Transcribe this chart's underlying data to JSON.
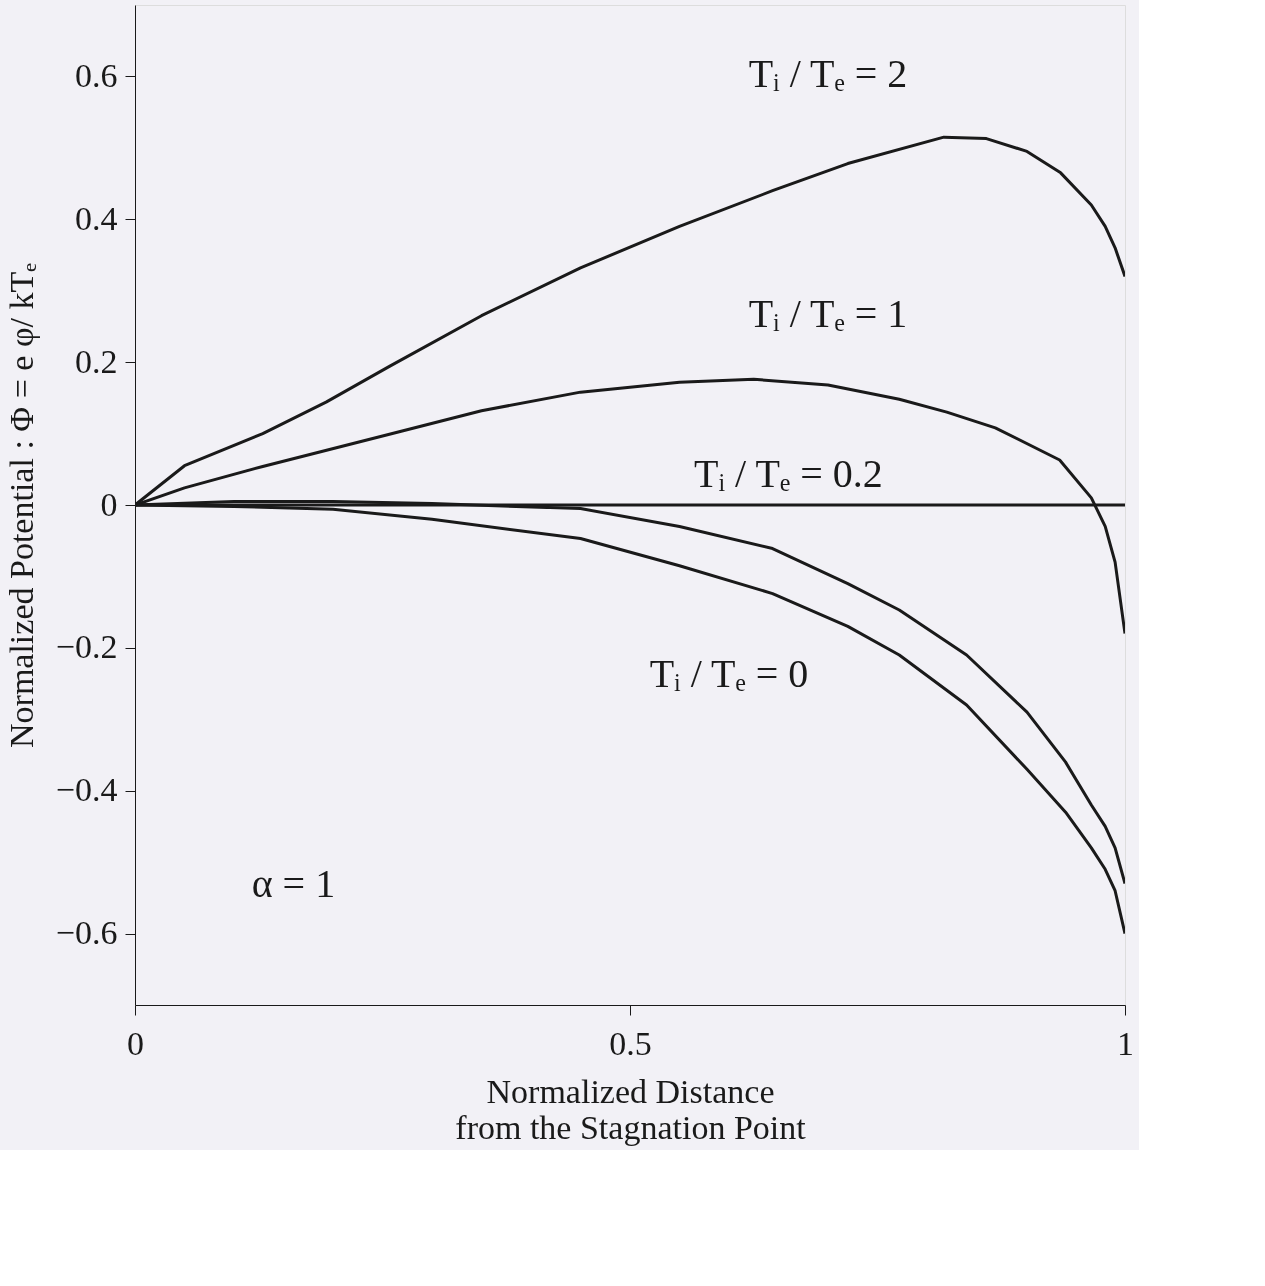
{
  "chart_data": {
    "type": "line",
    "xlabel": "Normalized Distance\nfrom the Stagnation Point",
    "ylabel": "Normalized Potential : Φ = e φ/ kTₑ",
    "series": [
      {
        "name": "Tᵢ / Tₑ = 2",
        "color": "#1a1a1a",
        "x": [
          0,
          0.05,
          0.129,
          0.193,
          0.257,
          0.35,
          0.45,
          0.55,
          0.644,
          0.72,
          0.817,
          0.86,
          0.901,
          0.935,
          0.966,
          0.98,
          0.99,
          1
        ],
        "values": [
          0,
          0.055,
          0.1,
          0.144,
          0.194,
          0.265,
          0.332,
          0.39,
          0.44,
          0.478,
          0.515,
          0.513,
          0.495,
          0.465,
          0.42,
          0.39,
          0.36,
          0.32
        ]
      },
      {
        "name": "Tᵢ / Tₑ = 1",
        "color": "#1a1a1a",
        "x": [
          0,
          0.05,
          0.129,
          0.257,
          0.35,
          0.45,
          0.55,
          0.625,
          0.7,
          0.772,
          0.82,
          0.869,
          0.934,
          0.966,
          0.98,
          0.99,
          1
        ],
        "values": [
          0,
          0.024,
          0.054,
          0.099,
          0.132,
          0.158,
          0.172,
          0.176,
          0.168,
          0.148,
          0.13,
          0.108,
          0.063,
          0.01,
          -0.03,
          -0.08,
          -0.18
        ]
      },
      {
        "name": "Tᵢ / Tₑ = 0.2",
        "color": "#1a1a1a",
        "x": [
          0,
          0.1,
          0.2,
          0.3,
          0.45,
          0.55,
          0.644,
          0.72,
          0.772,
          0.84,
          0.901,
          0.94,
          0.966,
          0.98,
          0.99,
          1
        ],
        "values": [
          0,
          0.005,
          0.005,
          0.002,
          -0.005,
          -0.03,
          -0.061,
          -0.11,
          -0.147,
          -0.21,
          -0.29,
          -0.36,
          -0.42,
          -0.45,
          -0.48,
          -0.53
        ]
      },
      {
        "name": "Tᵢ / Tₑ = 0",
        "color": "#1a1a1a",
        "x": [
          0,
          0.1,
          0.2,
          0.3,
          0.45,
          0.55,
          0.644,
          0.72,
          0.772,
          0.84,
          0.901,
          0.94,
          0.966,
          0.98,
          0.99,
          1
        ],
        "values": [
          0,
          -0.002,
          -0.006,
          -0.02,
          -0.047,
          -0.085,
          -0.124,
          -0.17,
          -0.21,
          -0.28,
          -0.37,
          -0.43,
          -0.48,
          -0.51,
          -0.54,
          -0.6
        ]
      }
    ],
    "xlim": [
      0,
      1
    ],
    "xticks": [
      0,
      0.5,
      1
    ],
    "ylim": [
      -0.7,
      0.7
    ],
    "yticks": [
      -0.6,
      -0.4,
      -0.2,
      0,
      0.2,
      0.4,
      0.6
    ],
    "ref_lines": [
      {
        "axis": "y",
        "value": 0,
        "color": "#1a1a1a"
      }
    ],
    "line_style": "solid",
    "annotations": [
      "α = 1"
    ]
  }
}
